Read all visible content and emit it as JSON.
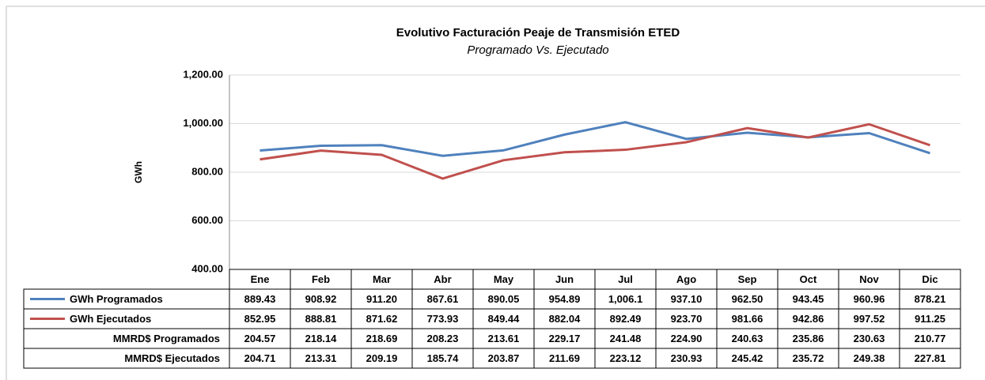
{
  "chart_data": {
    "type": "line",
    "title": "Evolutivo Facturación Peaje de Transmisión ETED",
    "subtitle": "Programado Vs. Ejecutado",
    "y_label": "GWh",
    "categories": [
      "Ene",
      "Feb",
      "Mar",
      "Abr",
      "May",
      "Jun",
      "Jul",
      "Ago",
      "Sep",
      "Oct",
      "Nov",
      "Dic"
    ],
    "series": [
      {
        "name": "GWh Programados",
        "color": "#4f81bd",
        "values": [
          889.43,
          908.92,
          911.2,
          867.61,
          890.05,
          954.89,
          1006.1,
          937.1,
          962.5,
          943.45,
          960.96,
          878.21
        ],
        "value_labels": [
          "889.43",
          "908.92",
          "911.20",
          "867.61",
          "890.05",
          "954.89",
          "1,006.1",
          "937.10",
          "962.50",
          "943.45",
          "960.96",
          "878.21"
        ]
      },
      {
        "name": "GWh Ejecutados",
        "color": "#c0504d",
        "values": [
          852.95,
          888.81,
          871.62,
          773.93,
          849.44,
          882.04,
          892.49,
          923.7,
          981.66,
          942.86,
          997.52,
          911.25
        ],
        "value_labels": [
          "852.95",
          "888.81",
          "871.62",
          "773.93",
          "849.44",
          "882.04",
          "892.49",
          "923.70",
          "981.66",
          "942.86",
          "997.52",
          "911.25"
        ]
      }
    ],
    "table_rows": [
      {
        "name": "MMRD$ Programados",
        "values": [
          "204.57",
          "218.14",
          "218.69",
          "208.23",
          "213.61",
          "229.17",
          "241.48",
          "224.90",
          "240.63",
          "235.86",
          "230.63",
          "210.77"
        ]
      },
      {
        "name": "MMRD$ Ejecutados",
        "values": [
          "204.71",
          "213.31",
          "209.19",
          "185.74",
          "203.87",
          "211.69",
          "223.12",
          "230.93",
          "245.42",
          "235.72",
          "249.38",
          "227.81"
        ]
      }
    ],
    "ylim": [
      400,
      1200
    ],
    "yticks": [
      {
        "value": 400,
        "label": "400.00"
      },
      {
        "value": 600,
        "label": "600.00"
      },
      {
        "value": 800,
        "label": "800.00"
      },
      {
        "value": 1000,
        "label": "1,000.00"
      },
      {
        "value": 1200,
        "label": "1,200.00"
      }
    ],
    "grid": true
  }
}
